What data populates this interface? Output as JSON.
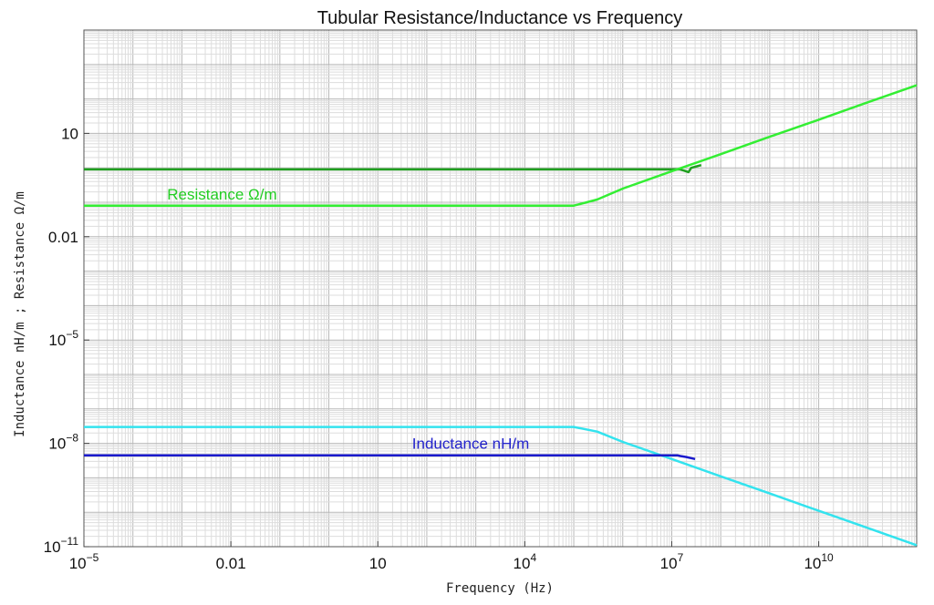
{
  "chart_data": {
    "type": "line",
    "title": "Tubular Resistance/Inductance vs Frequency",
    "xlabel": "Frequency (Hz)",
    "ylabel": "Inductance nH/m ;   Resistance Ω/m",
    "x_scale": "log",
    "y_scale": "log",
    "xlim": [
      1e-05,
      1000000000000.0
    ],
    "ylim": [
      1e-11,
      10000.0
    ],
    "x_ticks": [
      {
        "value": 1e-05,
        "base": "10",
        "exp": "−5"
      },
      {
        "value": 0.01,
        "base": "0.01",
        "exp": ""
      },
      {
        "value": 10,
        "base": "10",
        "exp": ""
      },
      {
        "value": 10000.0,
        "base": "10",
        "exp": "4"
      },
      {
        "value": 10000000.0,
        "base": "10",
        "exp": "7"
      },
      {
        "value": 10000000000.0,
        "base": "10",
        "exp": "10"
      }
    ],
    "y_ticks": [
      {
        "value": 1e-11,
        "base": "10",
        "exp": "−11"
      },
      {
        "value": 1e-08,
        "base": "10",
        "exp": "−8"
      },
      {
        "value": 1e-05,
        "base": "10",
        "exp": "−5"
      },
      {
        "value": 0.01,
        "base": "0.01",
        "exp": ""
      },
      {
        "value": 10,
        "base": "10",
        "exp": ""
      }
    ],
    "grid": true,
    "annotations": [
      {
        "text": "Resistance Ω/m",
        "color": "#22cc22",
        "x": 0.0005,
        "y": 0.12
      },
      {
        "text": "Inductance nH/m",
        "color": "#2222cc",
        "x": 50.0,
        "y": 7e-09
      }
    ],
    "series": [
      {
        "color": "#1f9f1f",
        "x": [
          1e-05,
          15000000.0,
          22000000.0,
          25000000.0,
          40000000.0
        ],
        "y": [
          0.9,
          0.9,
          0.75,
          1.0,
          1.2
        ]
      },
      {
        "color": "#33ee33",
        "x": [
          1e-05,
          100000.0,
          300000.0,
          1000000.0,
          10000000.0,
          100000000.0,
          1000000000.0,
          10000000000.0,
          100000000000.0,
          1000000000000.0
        ],
        "y": [
          0.08,
          0.08,
          0.12,
          0.25,
          0.8,
          2.5,
          8,
          25,
          80,
          250
        ]
      },
      {
        "color": "#33e3ee",
        "x": [
          1e-05,
          100000.0,
          300000.0,
          1000000.0,
          10000000.0,
          100000000.0,
          1000000000.0,
          10000000000.0,
          100000000000.0,
          1000000000000.0
        ],
        "y": [
          3e-08,
          3e-08,
          2.2e-08,
          1.1e-08,
          3.5e-09,
          1.1e-09,
          3.5e-10,
          1.1e-10,
          3.5e-11,
          1.1e-11
        ]
      },
      {
        "color": "#1a1acc",
        "x": [
          1e-05,
          13000000.0,
          15000000.0,
          20000000.0,
          30000000.0
        ],
        "y": [
          4.5e-09,
          4.5e-09,
          4.3e-09,
          4e-09,
          3.5e-09
        ]
      }
    ]
  }
}
